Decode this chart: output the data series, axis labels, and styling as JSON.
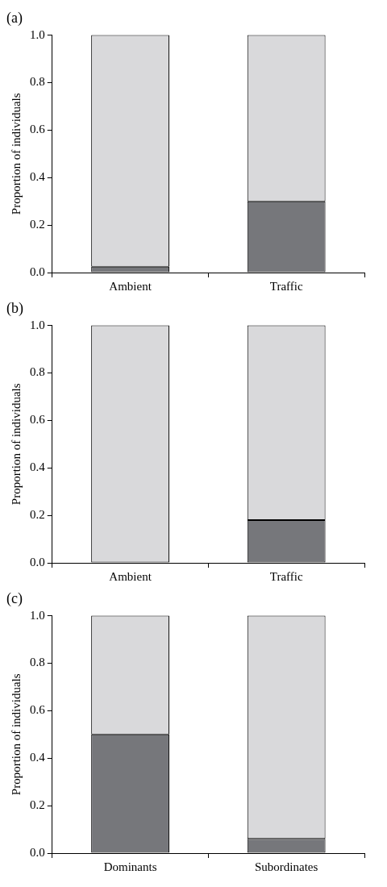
{
  "chart_data": [
    {
      "type": "bar",
      "title": "(a)",
      "ylabel": "Proportion of individuals",
      "categories": [
        "Ambient",
        "Traffic"
      ],
      "stacked": true,
      "legend": false,
      "grid": false,
      "series": [
        {
          "color": "#76777b",
          "values": [
            0.025,
            0.3
          ]
        },
        {
          "color": "#d9d9db",
          "values": [
            0.975,
            0.7
          ]
        }
      ],
      "ylim": [
        0,
        1
      ],
      "yticks": [
        {
          "value": 0,
          "label": "0.0"
        },
        {
          "value": 0.2,
          "label": "0.2"
        },
        {
          "value": 0.4,
          "label": "0.4"
        },
        {
          "value": 0.6,
          "label": "0.6"
        },
        {
          "value": 0.8,
          "label": "0.8"
        },
        {
          "value": 1,
          "label": "1.0"
        }
      ]
    },
    {
      "type": "bar",
      "title": "(b)",
      "ylabel": "Proportion of individuals",
      "categories": [
        "Ambient",
        "Traffic"
      ],
      "stacked": true,
      "legend": false,
      "grid": false,
      "series": [
        {
          "color": "#76777b",
          "values": [
            0,
            0.18
          ]
        },
        {
          "color": "#d9d9db",
          "values": [
            1,
            0.82
          ]
        }
      ],
      "ylim": [
        0,
        1
      ],
      "yticks": [
        {
          "value": 0,
          "label": "0.0"
        },
        {
          "value": 0.2,
          "label": "0.2"
        },
        {
          "value": 0.4,
          "label": "0.4"
        },
        {
          "value": 0.6,
          "label": "0.6"
        },
        {
          "value": 0.8,
          "label": "0.8"
        },
        {
          "value": 1,
          "label": "1.0"
        }
      ]
    },
    {
      "type": "bar",
      "title": "(c)",
      "ylabel": "Proportion of individuals",
      "categories": [
        "Dominants",
        "Subordinates"
      ],
      "stacked": true,
      "legend": false,
      "grid": false,
      "series": [
        {
          "color": "#76777b",
          "values": [
            0.5,
            0.06
          ]
        },
        {
          "color": "#d9d9db",
          "values": [
            0.5,
            0.94
          ]
        }
      ],
      "ylim": [
        0,
        1
      ],
      "yticks": [
        {
          "value": 0,
          "label": "0.0"
        },
        {
          "value": 0.2,
          "label": "0.2"
        },
        {
          "value": 0.4,
          "label": "0.4"
        },
        {
          "value": 0.6,
          "label": "0.6"
        },
        {
          "value": 0.8,
          "label": "0.8"
        },
        {
          "value": 1,
          "label": "1.0"
        }
      ]
    }
  ]
}
